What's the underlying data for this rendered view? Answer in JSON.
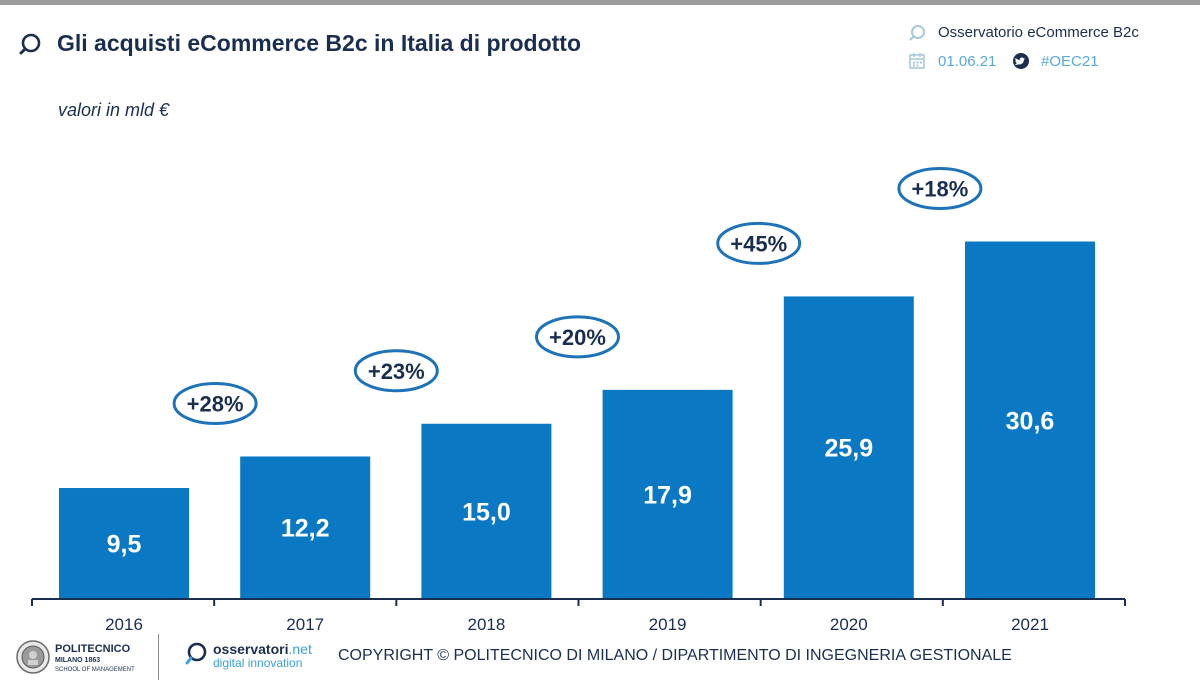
{
  "header": {
    "title": "Gli acquisti eCommerce B2c in Italia di prodotto",
    "source": "Osservatorio eCommerce B2c",
    "date": "01.06.21",
    "hashtag": "#OEC21"
  },
  "unit_label": "valori in mld €",
  "footer": {
    "copyright": "COPYRIGHT © POLITECNICO DI MILANO / DIPARTIMENTO DI INGEGNERIA GESTIONALE",
    "poli_name": "POLITECNICO",
    "poli_sub": "MILANO 1863",
    "poli_sub2": "SCHOOL OF MANAGEMENT",
    "oss_name": "osservatori",
    "oss_net": ".net",
    "oss_sub": "digital innovation"
  },
  "colors": {
    "bar": "#0a78c2",
    "text": "#1a2f4f",
    "growth_ring": "#1e73b8",
    "meta": "#58a8d8"
  },
  "chart_data": {
    "type": "bar",
    "title": "Gli acquisti eCommerce B2c in Italia di prodotto",
    "ylabel": "valori in mld €",
    "xlabel": "",
    "categories": [
      "2016",
      "2017",
      "2018",
      "2019",
      "2020",
      "2021"
    ],
    "values": [
      9.5,
      12.2,
      15.0,
      17.9,
      25.9,
      30.6
    ],
    "value_labels": [
      "9,5",
      "12,2",
      "15,0",
      "17,9",
      "25,9",
      "30,6"
    ],
    "growth_labels": [
      "+28%",
      "+23%",
      "+20%",
      "+45%",
      "+18%"
    ],
    "ylim": [
      0,
      31.5
    ],
    "grid": false
  }
}
